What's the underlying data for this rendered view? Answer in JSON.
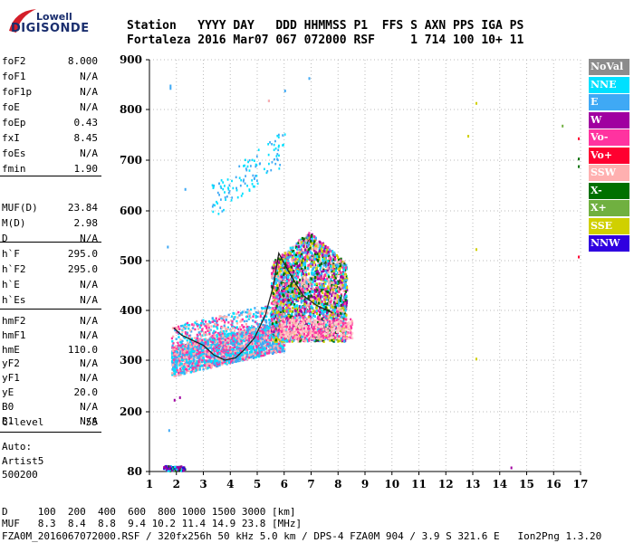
{
  "logo": {
    "top": "Lowell",
    "main": "DIGISONDE"
  },
  "header": {
    "line1": "Station   YYYY DAY   DDD HHMMSS P1  FFS S AXN PPS IGA PS",
    "line2": "Fortaleza 2016 Mar07 067 072000 RSF     1 714 100 10+ 11"
  },
  "params": [
    {
      "name": "foF2",
      "value": "8.000"
    },
    {
      "name": "foF1",
      "value": "N/A"
    },
    {
      "name": "foF1p",
      "value": "N/A"
    },
    {
      "name": "foE",
      "value": "N/A"
    },
    {
      "name": "foEp",
      "value": "0.43"
    },
    {
      "name": "fxI",
      "value": "8.45"
    },
    {
      "name": "foEs",
      "value": "N/A"
    },
    {
      "name": "fmin",
      "value": "1.90"
    },
    {
      "name": "MUF(D)",
      "value": "23.84"
    },
    {
      "name": "M(D)",
      "value": "2.98"
    },
    {
      "name": "D",
      "value": "N/A"
    },
    {
      "name": "h`F",
      "value": "295.0"
    },
    {
      "name": "h`F2",
      "value": "295.0"
    },
    {
      "name": "h`E",
      "value": "N/A"
    },
    {
      "name": "h`Es",
      "value": "N/A"
    },
    {
      "name": "hmF2",
      "value": "N/A"
    },
    {
      "name": "hmF1",
      "value": "N/A"
    },
    {
      "name": "hmE",
      "value": "110.0"
    },
    {
      "name": "yF2",
      "value": "N/A"
    },
    {
      "name": "yF1",
      "value": "N/A"
    },
    {
      "name": "yE",
      "value": "20.0"
    },
    {
      "name": "B0",
      "value": "N/A"
    },
    {
      "name": "B1",
      "value": "N/A"
    },
    {
      "name": "C-level",
      "value": "55"
    }
  ],
  "autoscaling": {
    "line1": "Auto:",
    "line2": "Artist5",
    "line3": "500200"
  },
  "legend": [
    {
      "label": "NoVal",
      "color": "#8c8c8c"
    },
    {
      "label": "NNE",
      "color": "#00e0ff"
    },
    {
      "label": "E",
      "color": "#3fa9f5"
    },
    {
      "label": "W",
      "color": "#a000a0"
    },
    {
      "label": "Vo-",
      "color": "#ff33a0"
    },
    {
      "label": "Vo+",
      "color": "#ff0030"
    },
    {
      "label": "SSW",
      "color": "#ffb0b0"
    },
    {
      "label": "X-",
      "color": "#007000"
    },
    {
      "label": "X+",
      "color": "#70b040"
    },
    {
      "label": "SSE",
      "color": "#d0d000"
    },
    {
      "label": "NNW",
      "color": "#3000e0"
    }
  ],
  "footer": {
    "line1": "D     100  200  400  600  800 1000 1500 3000 [km]",
    "line2": "MUF   8.3  8.4  8.8  9.4 10.2 11.4 14.9 23.8 [MHz]",
    "line3": "FZA0M_2016067072000.RSF / 320fx256h 50 kHz 5.0 km / DPS-4 FZA0M 904 / 3.9 S 321.6 E   Ion2Png 1.3.20"
  },
  "chart_data": {
    "type": "scatter",
    "x_range": [
      1,
      17
    ],
    "y_range": [
      80,
      900
    ],
    "x_ticks": [
      "1",
      "2",
      "3",
      "4",
      "5",
      "6",
      "7",
      "8",
      "9",
      "10",
      "11",
      "12",
      "13",
      "14",
      "15",
      "16",
      "17"
    ],
    "y_ticks": [
      "80",
      "200",
      "300",
      "400",
      "500",
      "600",
      "700",
      "800",
      "900"
    ],
    "grid": "dotted",
    "trace_line": [
      [
        1.9,
        365
      ],
      [
        2.2,
        350
      ],
      [
        2.6,
        340
      ],
      [
        3.0,
        330
      ],
      [
        3.4,
        310
      ],
      [
        3.8,
        300
      ],
      [
        4.2,
        305
      ],
      [
        4.5,
        320
      ],
      [
        4.9,
        345
      ],
      [
        5.3,
        390
      ],
      [
        5.6,
        450
      ],
      [
        5.8,
        515
      ],
      [
        6.2,
        475
      ],
      [
        6.7,
        430
      ],
      [
        7.2,
        410
      ],
      [
        7.8,
        395
      ]
    ],
    "echo_regions": [
      {
        "x": [
          1.8,
          6.0
        ],
        "y": [
          280,
          380
        ],
        "density": "high",
        "colors": [
          "#3fa9f5",
          "#ff33a0",
          "#ffb0b0",
          "#00e0ff"
        ]
      },
      {
        "x": [
          5.5,
          8.3
        ],
        "y": [
          330,
          560
        ],
        "density": "high",
        "colors": [
          "#007000",
          "#a000a0",
          "#3fa9f5",
          "#ff33a0",
          "#d0d000",
          "#ffb0b0",
          "#00e0ff"
        ]
      },
      {
        "x": [
          3.0,
          6.8
        ],
        "y": [
          600,
          860
        ],
        "density": "low",
        "colors": [
          "#3fa9f5",
          "#00e0ff"
        ]
      },
      {
        "x": [
          1.5,
          2.3
        ],
        "y": [
          80,
          95
        ],
        "density": "medium",
        "colors": [
          "#3000e0",
          "#a000a0",
          "#007000",
          "#00e0ff"
        ]
      }
    ]
  }
}
